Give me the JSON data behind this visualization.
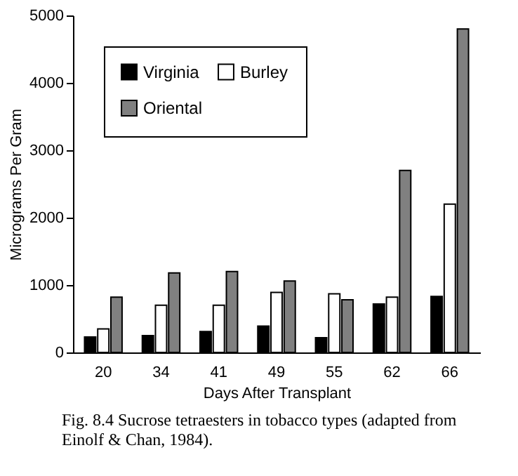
{
  "chart_data": {
    "type": "bar",
    "xlabel": "Days After Transplant",
    "ylabel": "Micrograms Per Gram",
    "categories": [
      "20",
      "34",
      "41",
      "49",
      "55",
      "62",
      "66"
    ],
    "series": [
      {
        "name": "Virginia",
        "color": "#000000",
        "values": [
          230,
          250,
          310,
          390,
          220,
          720,
          830
        ]
      },
      {
        "name": "Burley",
        "color": "#ffffff",
        "values": [
          350,
          700,
          700,
          890,
          870,
          820,
          2200
        ]
      },
      {
        "name": "Oriental",
        "color": "#808080",
        "values": [
          820,
          1180,
          1200,
          1060,
          780,
          2700,
          4800
        ]
      }
    ],
    "ylim": [
      0,
      5000
    ],
    "yticks": [
      0,
      1000,
      2000,
      3000,
      4000,
      5000
    ],
    "grid": false,
    "legend": "top left",
    "annotations": [
      "Fig. 8.4 Sucrose tetraesters in tobacco types (adapted from Einolf & Chan, 1984)."
    ]
  }
}
